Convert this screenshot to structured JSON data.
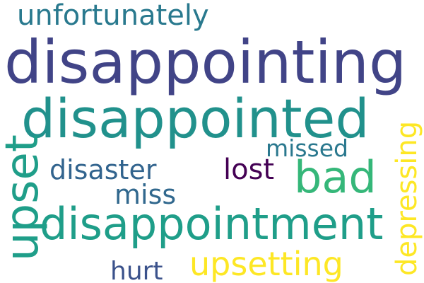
{
  "words": [
    {
      "text": "unfortunately",
      "color": "#29798e"
    },
    {
      "text": "disappointing",
      "color": "#414487"
    },
    {
      "text": "disappointed",
      "color": "#21918c"
    },
    {
      "text": "upset",
      "color": "#1f9e89"
    },
    {
      "text": "missed",
      "color": "#2a788e"
    },
    {
      "text": "disaster",
      "color": "#32648e"
    },
    {
      "text": "lost",
      "color": "#440154"
    },
    {
      "text": "bad",
      "color": "#35b779"
    },
    {
      "text": "miss",
      "color": "#31688e"
    },
    {
      "text": "disappointment",
      "color": "#1f9e89"
    },
    {
      "text": "depressing",
      "color": "#fde725"
    },
    {
      "text": "upsetting",
      "color": "#fde725"
    },
    {
      "text": "hurt",
      "color": "#3b528b"
    }
  ]
}
